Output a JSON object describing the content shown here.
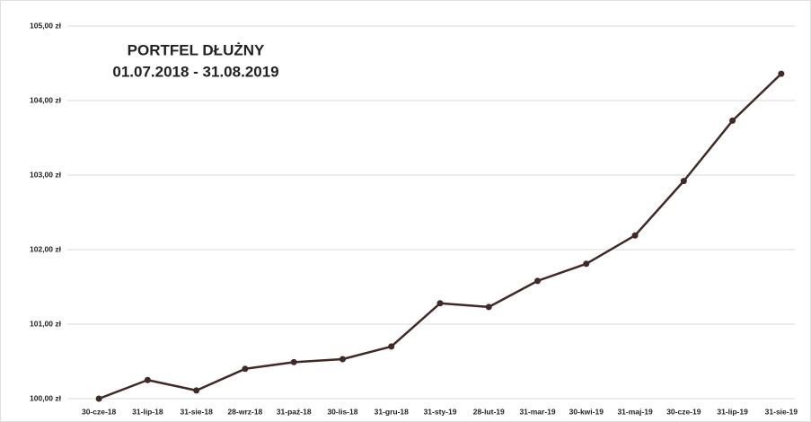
{
  "chart_data": {
    "type": "line",
    "title": "PORTFEL DŁUŻNY",
    "subtitle": "01.07.2018 - 31.08.2019",
    "categories": [
      "30-cze-18",
      "31-lip-18",
      "31-sie-18",
      "28-wrz-18",
      "31-paź-18",
      "30-lis-18",
      "31-gru-18",
      "31-sty-19",
      "28-lut-19",
      "31-mar-19",
      "30-kwi-19",
      "31-maj-19",
      "30-cze-19",
      "31-lip-19",
      "31-sie-19"
    ],
    "series": [
      {
        "color": "#3f2a26",
        "values": [
          100.0,
          100.25,
          100.11,
          100.4,
          100.49,
          100.53,
          100.7,
          101.28,
          101.23,
          101.58,
          101.81,
          102.19,
          102.92,
          103.73,
          104.36
        ]
      }
    ],
    "ylim": [
      100,
      105
    ],
    "yticks": [
      {
        "value": 100,
        "label": "100,00 zł"
      },
      {
        "value": 101,
        "label": "101,00 zł"
      },
      {
        "value": 102,
        "label": "102,00 zł"
      },
      {
        "value": 103,
        "label": "103,00 zł"
      },
      {
        "value": 104,
        "label": "104,00 zł"
      },
      {
        "value": 105,
        "label": "105,00 zł"
      }
    ],
    "grid": true
  }
}
